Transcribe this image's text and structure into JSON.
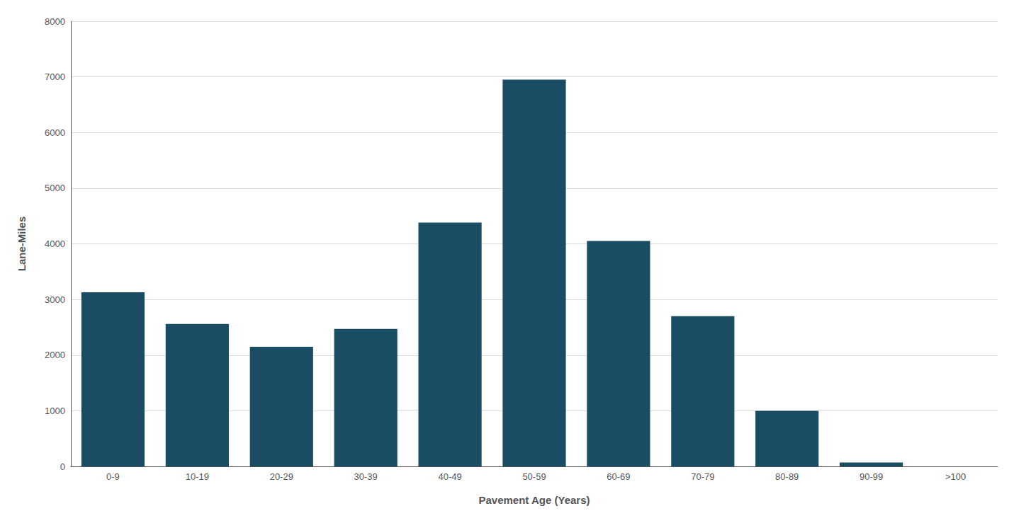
{
  "chart_data": {
    "type": "bar",
    "categories": [
      "0-9",
      "10-19",
      "20-29",
      "30-39",
      "40-49",
      "50-59",
      "60-69",
      "70-79",
      "80-89",
      "90-99",
      ">100"
    ],
    "values": [
      3130,
      2560,
      2150,
      2470,
      4380,
      6950,
      4050,
      2700,
      1000,
      70,
      0
    ],
    "color": "#1a4d63",
    "xlabel": "Pavement Age (Years)",
    "ylabel": "Lane-Miles",
    "ylim": [
      0,
      8000
    ],
    "yticks": [
      0,
      1000,
      2000,
      3000,
      4000,
      5000,
      6000,
      7000,
      8000
    ],
    "grid": true
  }
}
